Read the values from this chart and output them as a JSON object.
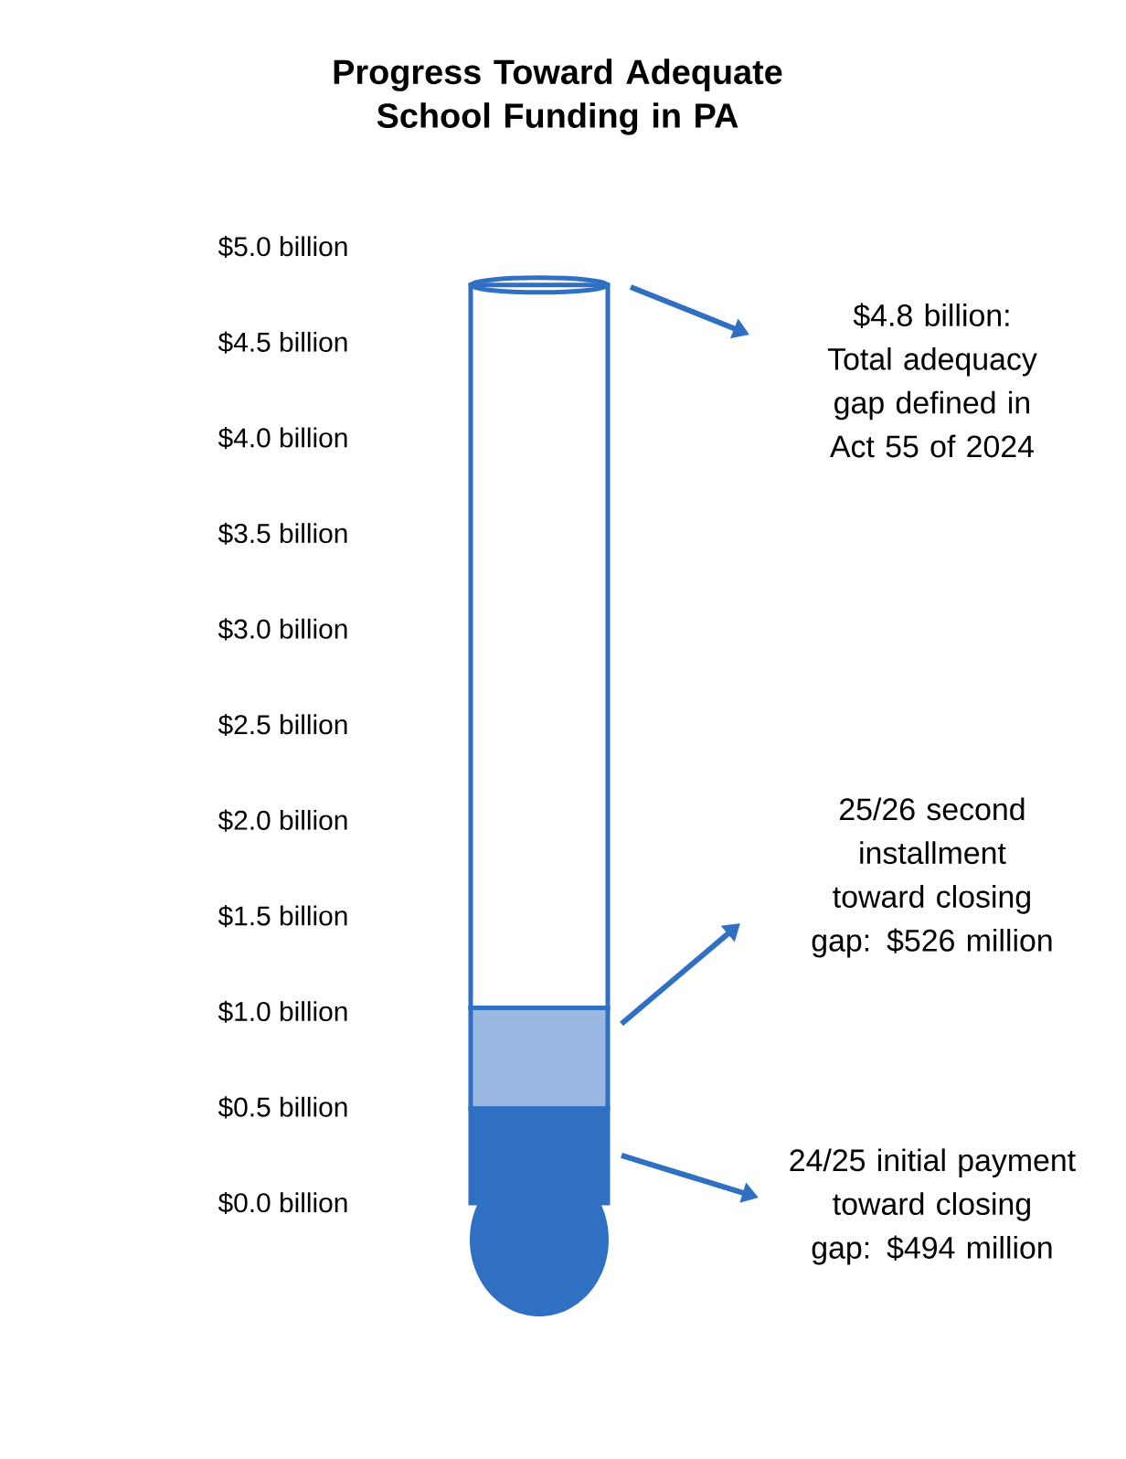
{
  "chart_data": {
    "type": "bar",
    "stacked": true,
    "title": "Progress Toward Adequate School Funding in PA",
    "categories": [
      null
    ],
    "series": [
      {
        "color": "#3070c2",
        "values": [
          0.494
        ]
      },
      {
        "color": "#9ab8e2",
        "values": [
          0.526
        ]
      },
      {
        "color": "#ffffff",
        "values": [
          3.78
        ]
      }
    ],
    "ylim": [
      0,
      5
    ],
    "yticks": [
      {
        "value": 0,
        "label": "$0.0 billion"
      },
      {
        "value": 0.5,
        "label": "$0.5 billion"
      },
      {
        "value": 1,
        "label": "$1.0 billion"
      },
      {
        "value": 1.5,
        "label": "$1.5 billion"
      },
      {
        "value": 2,
        "label": "$2.0 billion"
      },
      {
        "value": 2.5,
        "label": "$2.5 billion"
      },
      {
        "value": 3,
        "label": "$3.0 billion"
      },
      {
        "value": 3.5,
        "label": "$3.5 billion"
      },
      {
        "value": 4,
        "label": "$4.0 billion"
      },
      {
        "value": 4.5,
        "label": "$4.5 billion"
      },
      {
        "value": 5,
        "label": "$5.0 billion"
      }
    ],
    "tick_labels": "y",
    "grid": false,
    "annotations": [
      "$4.8 billion: Total adequacy gap defined in Act 55 of 2024",
      "25/26 second installment toward closing gap: $526 million",
      "24/25 initial payment toward closing gap: $494 million"
    ]
  }
}
